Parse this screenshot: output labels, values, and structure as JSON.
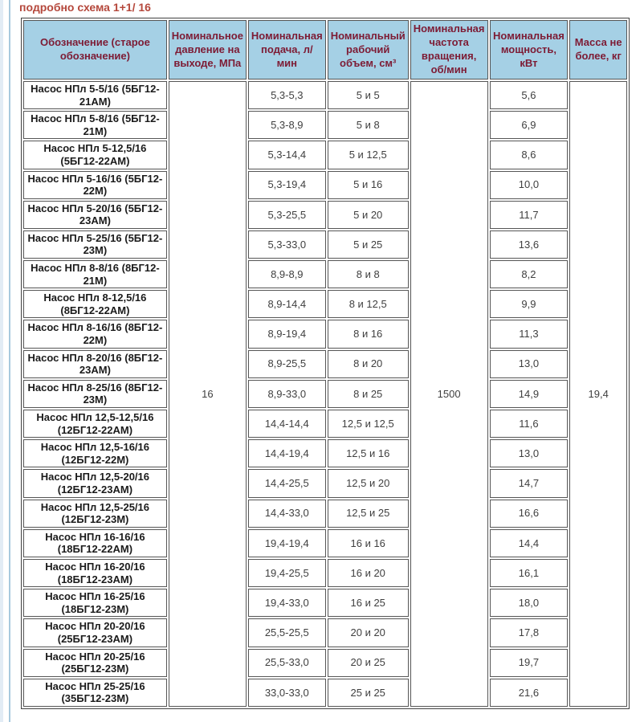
{
  "page": {
    "title": "подробно схема 1+1/ 16"
  },
  "colors": {
    "title_text": "#b5483c",
    "header_bg": "#a5d0e5",
    "header_text": "#7d1b34",
    "cell_border": "#565656",
    "left_strip": "#e2ecf5",
    "left_line": "#a8cade"
  },
  "table": {
    "headers": [
      "Обозначение (старое обозначение)",
      "Номинальное давление на выходе, МПа",
      "Номинальная подача, л/мин",
      "Номинальный рабочий объем, см³",
      "Номинальная частота вращения, об/мин",
      "Номинальная мощность, кВт",
      "Масса не более, кг"
    ],
    "merged": {
      "pressure": "16",
      "speed": "1500",
      "mass": "19,4"
    },
    "rows": [
      {
        "name": "Насос НПл 5-5/16 (5БГ12-21АМ)",
        "flow": "5,3-5,3",
        "volume": "5 и 5",
        "power": "5,6"
      },
      {
        "name": "Насос НПл 5-8/16 (5БГ12-21М)",
        "flow": "5,3-8,9",
        "volume": "5 и 8",
        "power": "6,9"
      },
      {
        "name": "Насос НПл 5-12,5/16 (5БГ12-22АМ)",
        "flow": "5,3-14,4",
        "volume": "5 и 12,5",
        "power": "8,6"
      },
      {
        "name": "Насос НПл 5-16/16 (5БГ12-22М)",
        "flow": "5,3-19,4",
        "volume": "5 и 16",
        "power": "10,0"
      },
      {
        "name": "Насос НПл 5-20/16 (5БГ12-23АМ)",
        "flow": "5,3-25,5",
        "volume": "5 и 20",
        "power": "11,7"
      },
      {
        "name": "Насос НПл 5-25/16 (5БГ12-23М)",
        "flow": "5,3-33,0",
        "volume": "5 и 25",
        "power": "13,6"
      },
      {
        "name": "Насос НПл 8-8/16 (8БГ12-21М)",
        "flow": "8,9-8,9",
        "volume": "8 и 8",
        "power": "8,2"
      },
      {
        "name": "Насос НПл 8-12,5/16 (8БГ12-22АМ)",
        "flow": "8,9-14,4",
        "volume": "8 и 12,5",
        "power": "9,9"
      },
      {
        "name": "Насос НПл 8-16/16 (8БГ12-22М)",
        "flow": "8,9-19,4",
        "volume": "8 и 16",
        "power": "11,3"
      },
      {
        "name": "Насос НПл 8-20/16 (8БГ12-23АМ)",
        "flow": "8,9-25,5",
        "volume": "8 и 20",
        "power": "13,0"
      },
      {
        "name": "Насос НПл 8-25/16 (8БГ12-23М)",
        "flow": "8,9-33,0",
        "volume": "8 и 25",
        "power": "14,9"
      },
      {
        "name": "Насос НПл 12,5-12,5/16 (12БГ12-22АМ)",
        "flow": "14,4-14,4",
        "volume": "12,5 и 12,5",
        "power": "11,6"
      },
      {
        "name": "Насос НПл 12,5-16/16 (12БГ12-22М)",
        "flow": "14,4-19,4",
        "volume": "12,5 и 16",
        "power": "13,0"
      },
      {
        "name": "Насос НПл 12,5-20/16 (12БГ12-23АМ)",
        "flow": "14,4-25,5",
        "volume": "12,5 и 20",
        "power": "14,7"
      },
      {
        "name": "Насос НПл 12,5-25/16 (12БГ12-23М)",
        "flow": "14,4-33,0",
        "volume": "12,5 и 25",
        "power": "16,6"
      },
      {
        "name": "Насос НПл 16-16/16 (18БГ12-22АМ)",
        "flow": "19,4-19,4",
        "volume": "16 и 16",
        "power": "14,4"
      },
      {
        "name": "Насос НПл 16-20/16 (18БГ12-23АМ)",
        "flow": "19,4-25,5",
        "volume": "16 и 20",
        "power": "16,1"
      },
      {
        "name": "Насос НПл 16-25/16 (18БГ12-23М)",
        "flow": "19,4-33,0",
        "volume": "16 и 25",
        "power": "18,0"
      },
      {
        "name": "Насос НПл 20-20/16 (25БГ12-23АМ)",
        "flow": "25,5-25,5",
        "volume": "20 и 20",
        "power": "17,8"
      },
      {
        "name": "Насос НПл 20-25/16 (25БГ12-23М)",
        "flow": "25,5-33,0",
        "volume": "20 и 25",
        "power": "19,7"
      },
      {
        "name": "Насос НПл 25-25/16 (35БГ12-23М)",
        "flow": "33,0-33,0",
        "volume": "25 и 25",
        "power": "21,6"
      }
    ]
  }
}
